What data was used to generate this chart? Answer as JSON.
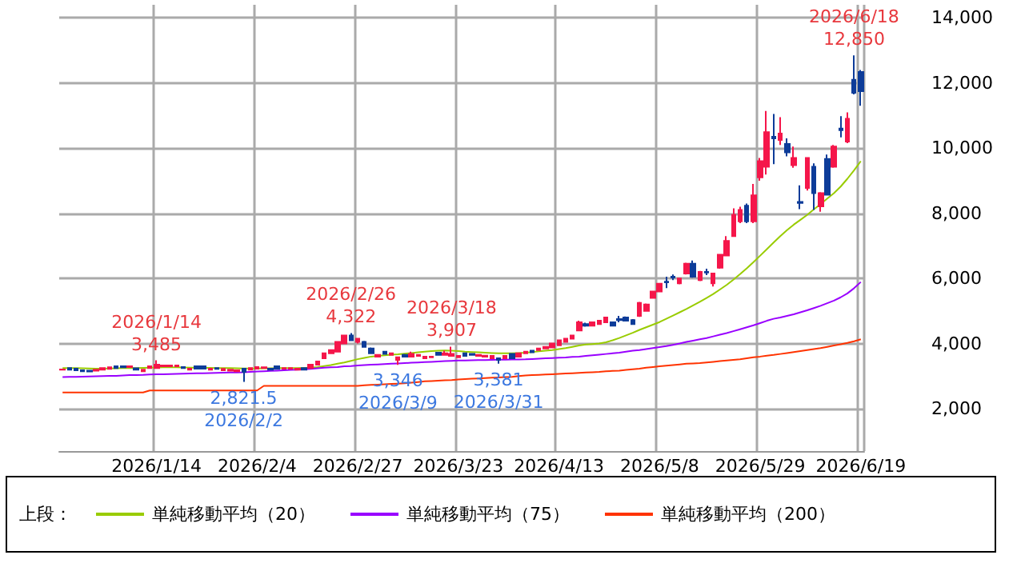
{
  "chart_data": {
    "type": "candlestick",
    "categories": [
      null,
      null,
      null,
      null,
      null,
      null,
      null,
      null,
      null,
      null,
      null,
      null,
      null,
      null,
      "2026/1/14",
      null,
      null,
      null,
      null,
      null,
      null,
      null,
      null,
      null,
      null,
      null,
      null,
      null,
      null,
      "2026/2/4",
      null,
      null,
      null,
      null,
      null,
      null,
      null,
      null,
      null,
      null,
      null,
      null,
      null,
      null,
      "2026/2/27",
      null,
      null,
      null,
      null,
      null,
      null,
      null,
      null,
      null,
      null,
      null,
      null,
      null,
      null,
      "2026/3/23",
      null,
      null,
      null,
      null,
      null,
      null,
      null,
      null,
      null,
      null,
      null,
      null,
      null,
      null,
      "2026/4/13",
      null,
      null,
      null,
      null,
      null,
      null,
      null,
      null,
      null,
      null,
      null,
      null,
      null,
      null,
      "2026/5/8",
      null,
      null,
      null,
      null,
      null,
      null,
      null,
      null,
      null,
      null,
      null,
      null,
      null,
      null,
      "2026/5/29",
      null,
      null,
      null,
      null,
      null,
      null,
      null,
      null,
      null,
      null,
      null,
      null,
      null,
      null,
      "2026/6/19"
    ],
    "ohlc": [
      [
        3200,
        3230,
        3180,
        3205
      ],
      [
        3250,
        3270,
        3190,
        3200
      ],
      [
        3230,
        3250,
        3170,
        3180
      ],
      [
        3180,
        3200,
        3140,
        3150
      ],
      [
        3170,
        3190,
        3130,
        3140
      ],
      [
        3170,
        3220,
        3150,
        3200
      ],
      [
        3200,
        3260,
        3190,
        3250
      ],
      [
        3220,
        3290,
        3210,
        3270
      ],
      [
        3300,
        3320,
        3240,
        3250
      ],
      [
        3300,
        3310,
        3260,
        3270
      ],
      [
        3280,
        3310,
        3270,
        3300
      ],
      [
        3240,
        3260,
        3190,
        3200
      ],
      [
        3150,
        3210,
        3130,
        3200
      ],
      [
        3250,
        3310,
        3240,
        3300
      ],
      [
        3250,
        3485,
        3240,
        3350
      ],
      [
        3300,
        3350,
        3280,
        3330
      ],
      [
        3300,
        3340,
        3280,
        3330
      ],
      [
        3300,
        3340,
        3280,
        3330
      ],
      [
        3280,
        3300,
        3240,
        3250
      ],
      [
        3200,
        3240,
        3190,
        3230
      ],
      [
        3300,
        3310,
        3220,
        3230
      ],
      [
        3300,
        3310,
        3220,
        3230
      ],
      [
        3200,
        3240,
        3190,
        3230
      ],
      [
        3250,
        3260,
        3210,
        3220
      ],
      [
        3180,
        3230,
        3170,
        3220
      ],
      [
        3170,
        3210,
        3160,
        3200
      ],
      [
        3150,
        3190,
        3140,
        3180
      ],
      [
        3230,
        3250,
        2821.5,
        3130
      ],
      [
        3200,
        3260,
        3190,
        3250
      ],
      [
        3230,
        3290,
        3220,
        3280
      ],
      [
        3250,
        3280,
        3240,
        3270
      ],
      [
        3230,
        3250,
        3190,
        3200
      ],
      [
        3300,
        3310,
        3210,
        3220
      ],
      [
        3230,
        3260,
        3220,
        3250
      ],
      [
        3230,
        3260,
        3220,
        3250
      ],
      [
        3200,
        3240,
        3190,
        3230
      ],
      [
        3250,
        3270,
        3190,
        3200
      ],
      [
        3250,
        3360,
        3240,
        3350
      ],
      [
        3350,
        3460,
        3340,
        3450
      ],
      [
        3550,
        3710,
        3540,
        3700
      ],
      [
        3700,
        3820,
        3690,
        3800
      ],
      [
        3750,
        4060,
        3740,
        4050
      ],
      [
        4000,
        4260,
        3990,
        4250
      ],
      [
        4250,
        4322,
        4080,
        4100
      ],
      [
        4050,
        4170,
        4000,
        4150
      ],
      [
        4050,
        4080,
        3880,
        3900
      ],
      [
        3850,
        3880,
        3680,
        3700
      ],
      [
        3600,
        3670,
        3580,
        3650
      ],
      [
        3750,
        3770,
        3660,
        3680
      ],
      [
        3650,
        3720,
        3630,
        3700
      ],
      [
        3500,
        3600,
        3346,
        3580
      ],
      [
        3650,
        3680,
        3580,
        3600
      ],
      [
        3600,
        3750,
        3590,
        3680
      ],
      [
        3620,
        3670,
        3600,
        3650
      ],
      [
        3550,
        3620,
        3530,
        3600
      ],
      [
        3580,
        3620,
        3560,
        3600
      ],
      [
        3720,
        3740,
        3640,
        3650
      ],
      [
        3650,
        3780,
        3640,
        3700
      ],
      [
        3620,
        3907,
        3600,
        3680
      ],
      [
        3580,
        3640,
        3560,
        3620
      ],
      [
        3700,
        3720,
        3600,
        3620
      ],
      [
        3680,
        3700,
        3630,
        3650
      ],
      [
        3620,
        3670,
        3600,
        3650
      ],
      [
        3600,
        3650,
        3580,
        3630
      ],
      [
        3550,
        3640,
        3530,
        3620
      ],
      [
        3550,
        3570,
        3381,
        3500
      ],
      [
        3550,
        3640,
        3530,
        3620
      ],
      [
        3680,
        3700,
        3530,
        3550
      ],
      [
        3600,
        3720,
        3590,
        3700
      ],
      [
        3700,
        3770,
        3690,
        3750
      ],
      [
        3780,
        3800,
        3720,
        3730
      ],
      [
        3800,
        3870,
        3790,
        3850
      ],
      [
        3850,
        3920,
        3840,
        3900
      ],
      [
        3880,
        4020,
        3870,
        4000
      ],
      [
        3950,
        4120,
        3940,
        4100
      ],
      [
        4050,
        4170,
        4040,
        4150
      ],
      [
        4150,
        4270,
        4140,
        4250
      ],
      [
        4400,
        4700,
        4380,
        4650
      ],
      [
        4600,
        4640,
        4520,
        4550
      ],
      [
        4550,
        4680,
        4530,
        4650
      ],
      [
        4600,
        4720,
        4580,
        4700
      ],
      [
        4650,
        4820,
        4630,
        4800
      ],
      [
        4650,
        4680,
        4530,
        4550
      ],
      [
        4750,
        4850,
        4650,
        4720
      ],
      [
        4800,
        4830,
        4680,
        4700
      ],
      [
        4720,
        4750,
        4580,
        4600
      ],
      [
        4850,
        5280,
        4820,
        5250
      ],
      [
        5000,
        5230,
        4980,
        5200
      ],
      [
        5400,
        5620,
        5380,
        5600
      ],
      [
        5600,
        5860,
        5580,
        5840
      ],
      [
        5900,
        6050,
        5700,
        5880
      ],
      [
        6050,
        6120,
        5950,
        6030
      ],
      [
        5850,
        6020,
        5820,
        6000
      ],
      [
        6150,
        6480,
        6120,
        6450
      ],
      [
        6450,
        6550,
        6020,
        6050
      ],
      [
        5950,
        6230,
        5920,
        6200
      ],
      [
        6200,
        6300,
        6100,
        6180
      ],
      [
        5850,
        6170,
        5750,
        6150
      ],
      [
        6330,
        6750,
        6300,
        6730
      ],
      [
        6700,
        7300,
        6680,
        7150
      ],
      [
        7300,
        8150,
        7280,
        7950
      ],
      [
        7750,
        8200,
        7700,
        8100
      ],
      [
        8230,
        8300,
        7700,
        7750
      ],
      [
        7750,
        8900,
        7700,
        8550
      ],
      [
        9100,
        9700,
        9000,
        9600
      ],
      [
        9430,
        11140,
        9190,
        10490
      ],
      [
        10350,
        11050,
        9510,
        10300
      ],
      [
        10250,
        10950,
        10100,
        10450
      ],
      [
        10130,
        10300,
        9750,
        9870
      ],
      [
        9480,
        10050,
        9400,
        9700
      ],
      [
        8350,
        8860,
        8130,
        8320
      ],
      [
        8780,
        9720,
        8700,
        9700
      ],
      [
        9430,
        9530,
        8100,
        8620
      ],
      [
        8210,
        8650,
        8050,
        8620
      ],
      [
        9670,
        9800,
        8550,
        8570
      ],
      [
        9430,
        10100,
        9400,
        10050
      ],
      [
        10600,
        10980,
        10330,
        10550
      ],
      [
        10200,
        11100,
        10150,
        10900
      ],
      [
        12100,
        12850,
        11650,
        11700
      ],
      [
        12340,
        12400,
        11300,
        11750
      ]
    ],
    "colors": [
      "#f5164a",
      "#0d3c99",
      "#0d3c99",
      "#0d3c99",
      "#0d3c99",
      "#f5164a",
      "#f5164a",
      "#f5164a",
      "#0d3c99",
      "#0d3c99",
      "#f5164a",
      "#0d3c99",
      "#f5164a",
      "#f5164a",
      "#f5164a",
      "#f5164a",
      "#f5164a",
      "#f5164a",
      "#0d3c99",
      "#f5164a",
      "#0d3c99",
      "#0d3c99",
      "#f5164a",
      "#0d3c99",
      "#f5164a",
      "#f5164a",
      "#f5164a",
      "#0d3c99",
      "#f5164a",
      "#f5164a",
      "#f5164a",
      "#0d3c99",
      "#0d3c99",
      "#f5164a",
      "#f5164a",
      "#f5164a",
      "#0d3c99",
      "#f5164a",
      "#f5164a",
      "#f5164a",
      "#f5164a",
      "#f5164a",
      "#f5164a",
      "#0d3c99",
      "#f5164a",
      "#0d3c99",
      "#0d3c99",
      "#f5164a",
      "#0d3c99",
      "#f5164a",
      "#f5164a",
      "#0d3c99",
      "#f5164a",
      "#f5164a",
      "#f5164a",
      "#f5164a",
      "#0d3c99",
      "#f5164a",
      "#f5164a",
      "#f5164a",
      "#0d3c99",
      "#0d3c99",
      "#f5164a",
      "#f5164a",
      "#f5164a",
      "#0d3c99",
      "#f5164a",
      "#0d3c99",
      "#f5164a",
      "#f5164a",
      "#0d3c99",
      "#f5164a",
      "#f5164a",
      "#f5164a",
      "#f5164a",
      "#f5164a",
      "#f5164a",
      "#f5164a",
      "#0d3c99",
      "#f5164a",
      "#f5164a",
      "#f5164a",
      "#0d3c99",
      "#0d3c99",
      "#0d3c99",
      "#0d3c99",
      "#f5164a",
      "#f5164a",
      "#f5164a",
      "#f5164a",
      "#0d3c99",
      "#0d3c99",
      "#f5164a",
      "#f5164a",
      "#0d3c99",
      "#f5164a",
      "#0d3c99",
      "#f5164a",
      "#f5164a",
      "#f5164a",
      "#f5164a",
      "#f5164a",
      "#0d3c99",
      "#f5164a",
      "#f5164a",
      "#f5164a",
      "#0d3c99",
      "#f5164a",
      "#0d3c99",
      "#f5164a",
      "#0d3c99",
      "#f5164a",
      "#0d3c99",
      "#f5164a",
      "#0d3c99",
      "#f5164a",
      "#0d3c99",
      "#f5164a",
      "#0d3c99",
      "#0d3c99"
    ],
    "series": [
      {
        "name": "単純移動平均（20）",
        "type": "line",
        "color": "#99cc00",
        "values": [
          3250,
          3250,
          3245,
          3240,
          3235,
          3230,
          3230,
          3235,
          3240,
          3245,
          3250,
          3250,
          3255,
          3260,
          3265,
          3270,
          3270,
          3270,
          3265,
          3260,
          3260,
          3255,
          3255,
          3250,
          3250,
          3245,
          3240,
          3235,
          3235,
          3235,
          3240,
          3240,
          3245,
          3245,
          3250,
          3250,
          3255,
          3260,
          3280,
          3310,
          3340,
          3380,
          3420,
          3470,
          3520,
          3560,
          3600,
          3620,
          3640,
          3660,
          3670,
          3690,
          3710,
          3730,
          3750,
          3770,
          3780,
          3790,
          3780,
          3770,
          3750,
          3740,
          3730,
          3720,
          3710,
          3700,
          3700,
          3700,
          3710,
          3720,
          3740,
          3760,
          3780,
          3800,
          3830,
          3860,
          3900,
          3940,
          3970,
          3985,
          4000,
          4040,
          4100,
          4170,
          4250,
          4330,
          4420,
          4500,
          4580,
          4660,
          4760,
          4860,
          4960,
          5060,
          5170,
          5280,
          5400,
          5520,
          5660,
          5800,
          5960,
          6130,
          6310,
          6500,
          6700,
          6900,
          7100,
          7300,
          7480,
          7650,
          7800,
          7950,
          8120,
          8280,
          8450,
          8620,
          8820,
          9060,
          9320,
          9600
        ]
      },
      {
        "name": "単純移動平均（75）",
        "type": "line",
        "color": "#9900ff",
        "values": [
          2970,
          2975,
          2980,
          2985,
          2990,
          2995,
          3000,
          3005,
          3010,
          3020,
          3030,
          3035,
          3040,
          3050,
          3055,
          3060,
          3065,
          3070,
          3075,
          3080,
          3085,
          3090,
          3095,
          3100,
          3105,
          3110,
          3115,
          3120,
          3130,
          3140,
          3150,
          3160,
          3170,
          3180,
          3190,
          3200,
          3210,
          3220,
          3240,
          3260,
          3270,
          3280,
          3300,
          3310,
          3330,
          3340,
          3350,
          3360,
          3370,
          3380,
          3390,
          3400,
          3410,
          3420,
          3430,
          3440,
          3450,
          3460,
          3470,
          3480,
          3480,
          3485,
          3490,
          3495,
          3500,
          3505,
          3505,
          3510,
          3510,
          3515,
          3525,
          3535,
          3545,
          3555,
          3565,
          3575,
          3590,
          3600,
          3620,
          3640,
          3660,
          3680,
          3700,
          3720,
          3750,
          3780,
          3800,
          3830,
          3860,
          3890,
          3920,
          3960,
          4000,
          4050,
          4090,
          4130,
          4170,
          4220,
          4270,
          4320,
          4380,
          4440,
          4500,
          4560,
          4630,
          4700,
          4760,
          4800,
          4850,
          4900,
          4960,
          5020,
          5090,
          5160,
          5240,
          5320,
          5420,
          5540,
          5700,
          5890
        ]
      },
      {
        "name": "単純移動平均（200）",
        "type": "line",
        "color": "#ff3300",
        "values": [
          2500,
          2500,
          2500,
          2500,
          2500,
          2500,
          2500,
          2500,
          2500,
          2500,
          2500,
          2500,
          2500,
          2560,
          2560,
          2560,
          2560,
          2560,
          2560,
          2560,
          2560,
          2560,
          2560,
          2560,
          2560,
          2560,
          2560,
          2560,
          2560,
          2560,
          2700,
          2700,
          2700,
          2700,
          2700,
          2700,
          2700,
          2700,
          2700,
          2700,
          2700,
          2700,
          2700,
          2700,
          2700,
          2720,
          2730,
          2740,
          2750,
          2760,
          2770,
          2780,
          2800,
          2820,
          2840,
          2850,
          2860,
          2870,
          2880,
          2900,
          2910,
          2920,
          2930,
          2940,
          2950,
          2960,
          2970,
          2980,
          3000,
          3020,
          3030,
          3040,
          3050,
          3060,
          3070,
          3080,
          3090,
          3100,
          3110,
          3120,
          3130,
          3150,
          3160,
          3170,
          3190,
          3210,
          3230,
          3260,
          3280,
          3300,
          3320,
          3340,
          3360,
          3380,
          3390,
          3400,
          3420,
          3440,
          3460,
          3480,
          3500,
          3520,
          3550,
          3580,
          3600,
          3630,
          3650,
          3680,
          3710,
          3740,
          3770,
          3800,
          3830,
          3860,
          3900,
          3940,
          3980,
          4020,
          4070,
          4130
        ]
      }
    ],
    "ylim": [
      700,
      14400
    ],
    "yticks": [
      {
        "value": 2000,
        "label": "2,000"
      },
      {
        "value": 4000,
        "label": "4,000"
      },
      {
        "value": 6000,
        "label": "6,000"
      },
      {
        "value": 8000,
        "label": "8,000"
      },
      {
        "value": 10000,
        "label": "10,000"
      },
      {
        "value": 12000,
        "label": "12,000"
      },
      {
        "value": 14000,
        "label": "14,000"
      }
    ],
    "grid": true,
    "legend": "bottom",
    "legend_title": "上段：",
    "marker": "none",
    "annotations": [
      {
        "text": "2026/1/14\n3,485",
        "y": 3485
      },
      {
        "text": "2,821.5\n2026/2/2",
        "y": 2821.5
      },
      {
        "text": "2026/2/26\n4,322",
        "y": 4322
      },
      {
        "text": "3,346\n2026/3/9",
        "y": 3346
      },
      {
        "text": "2026/3/18\n3,907",
        "y": 3907
      },
      {
        "text": "3,381\n2026/3/31",
        "y": 3381
      },
      {
        "text": "2026/6/18\n12,850",
        "y": 12850
      }
    ]
  }
}
